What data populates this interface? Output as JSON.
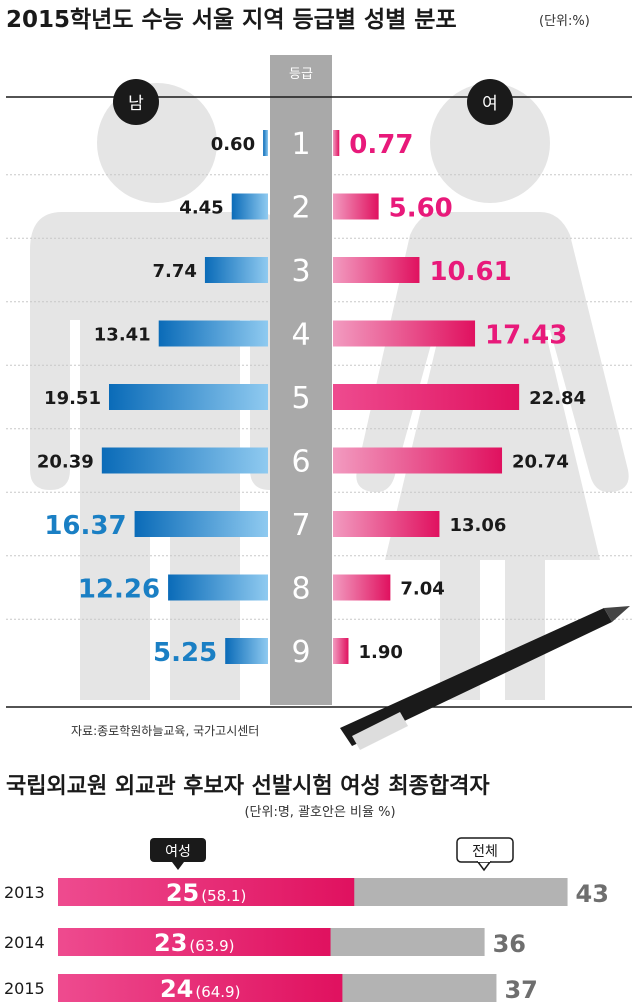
{
  "chart_data": [
    {
      "type": "bar",
      "title": "2015학년도 수능 서울 지역 등급별 성별 분포",
      "unit_note": "(단위:%)",
      "axis_label": "등급",
      "categories": [
        "1",
        "2",
        "3",
        "4",
        "5",
        "6",
        "7",
        "8",
        "9"
      ],
      "series": [
        {
          "name": "남",
          "values": [
            0.6,
            4.45,
            7.74,
            13.41,
            19.51,
            20.39,
            16.37,
            12.26,
            5.25
          ]
        },
        {
          "name": "여",
          "values": [
            0.77,
            5.6,
            10.61,
            17.43,
            22.84,
            20.74,
            13.06,
            7.04,
            1.9
          ]
        }
      ],
      "value_labels": {
        "male": [
          "0.60",
          "4.45",
          "7.74",
          "13.41",
          "19.51",
          "20.39",
          "16.37",
          "12.26",
          "5.25"
        ],
        "female": [
          "0.77",
          "5.60",
          "10.61",
          "17.43",
          "22.84",
          "20.74",
          "13.06",
          "7.04",
          "1.90"
        ]
      },
      "source": "자료:종로학원하늘교육, 국가고시센터",
      "colors": {
        "male": "#1a7fc4",
        "female": "#e8197a",
        "axis": "#a9a9a9",
        "silhouette": "#e4e4e4"
      }
    },
    {
      "type": "bar",
      "title": "국립외교원 외교관 후보자 선발시험 여성 최종합격자",
      "unit_note": "(단위:명, 괄호안은 비율 %)",
      "categories": [
        "2013",
        "2014",
        "2015"
      ],
      "series": [
        {
          "name": "여성",
          "values": [
            25,
            23,
            24
          ]
        },
        {
          "name": "전체",
          "values": [
            43,
            36,
            37
          ]
        }
      ],
      "ratio": [
        58.1,
        63.9,
        64.9
      ],
      "female_labels": [
        "25",
        "23",
        "24"
      ],
      "ratio_labels": [
        "(58.1)",
        "(63.9)",
        "(64.9)"
      ],
      "total_labels": [
        "43",
        "36",
        "37"
      ],
      "colors": {
        "female": "#e8197a",
        "total": "#b3b3b3"
      }
    }
  ]
}
